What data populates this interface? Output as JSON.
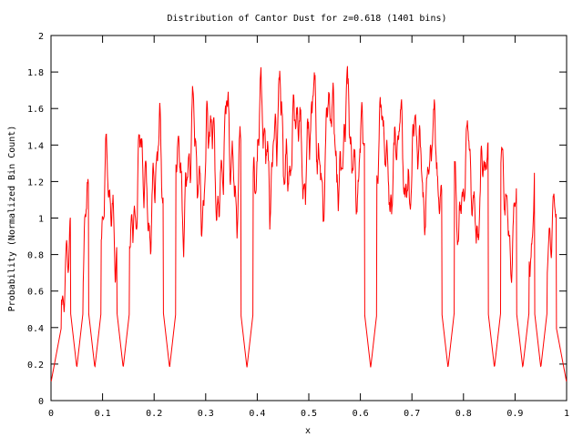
{
  "chart_data": {
    "type": "line",
    "title": "Distribution of Cantor Dust for z=0.618 (1401 bins)",
    "xlabel": "x",
    "ylabel": "Probability (Normalized Bin Count)",
    "xlim": [
      0,
      1
    ],
    "ylim": [
      0,
      2
    ],
    "x_ticks": [
      "0",
      "0.1",
      "0.2",
      "0.3",
      "0.4",
      "0.5",
      "0.6",
      "0.7",
      "0.8",
      "0.9",
      "1"
    ],
    "y_ticks": [
      "0",
      "0.2",
      "0.4",
      "0.6",
      "0.8",
      "1",
      "1.2",
      "1.4",
      "1.6",
      "1.8",
      "2"
    ],
    "bins": 1401,
    "z": 0.618,
    "series_color": "#ff0000",
    "grid": false,
    "legend": "none"
  }
}
